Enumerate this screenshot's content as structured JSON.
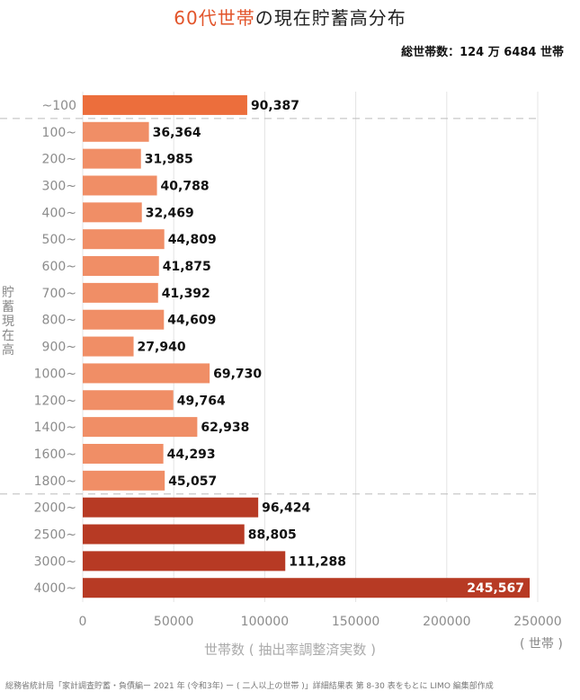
{
  "title": {
    "accent": "60代世帯",
    "rest": "の現在貯蓄高分布"
  },
  "total_households": "総世帯数：124 万 6484 世帯",
  "y_axis_label": "貯蓄現在高",
  "x_axis_label": "世帯数 ( 抽出率調整済実数 )",
  "x_unit": "( 世帯 )",
  "source": "総務省統計局「家計調査貯蓄・負債編ー 2021 年 (令和3年) ー ( 二人以上の世帯 )」詳細結果表 第 8-30 表をもとに LIMO 編集部作成",
  "colors": {
    "top": "#ec6e3c",
    "middle": "#f08e66",
    "bottom": "#b73a24"
  },
  "chart_data": {
    "type": "bar",
    "orientation": "horizontal",
    "title": "60代世帯の現在貯蓄高分布",
    "xlabel": "世帯数 ( 抽出率調整済実数 )",
    "ylabel": "貯蓄現在高",
    "xlim": [
      0,
      250000
    ],
    "xticks": [
      0,
      50000,
      100000,
      150000,
      200000,
      250000
    ],
    "grid": true,
    "categories": [
      "~100",
      "100~",
      "200~",
      "300~",
      "400~",
      "500~",
      "600~",
      "700~",
      "800~",
      "900~",
      "1000~",
      "1200~",
      "1400~",
      "1600~",
      "1800~",
      "2000~",
      "2500~",
      "3000~",
      "4000~"
    ],
    "values": [
      90387,
      36364,
      31985,
      40788,
      32469,
      44809,
      41875,
      41392,
      44609,
      27940,
      69730,
      49764,
      62938,
      44293,
      45057,
      96424,
      88805,
      111288,
      245567
    ],
    "value_labels": [
      "90,387",
      "36,364",
      "31,985",
      "40,788",
      "32,469",
      "44,809",
      "41,875",
      "41,392",
      "44,609",
      "27,940",
      "69,730",
      "49,764",
      "62,938",
      "44,293",
      "45,057",
      "96,424",
      "88,805",
      "111,288",
      "245,567"
    ],
    "color_group": [
      "top",
      "middle",
      "middle",
      "middle",
      "middle",
      "middle",
      "middle",
      "middle",
      "middle",
      "middle",
      "middle",
      "middle",
      "middle",
      "middle",
      "middle",
      "bottom",
      "bottom",
      "bottom",
      "bottom"
    ]
  }
}
